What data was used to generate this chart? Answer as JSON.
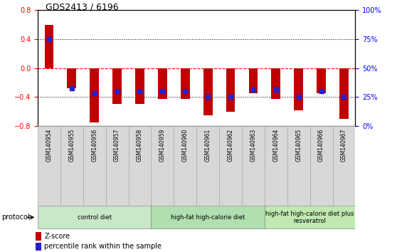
{
  "title": "GDS2413 / 6196",
  "samples": [
    "GSM140954",
    "GSM140955",
    "GSM140956",
    "GSM140957",
    "GSM140958",
    "GSM140959",
    "GSM140960",
    "GSM140961",
    "GSM140962",
    "GSM140963",
    "GSM140964",
    "GSM140965",
    "GSM140966",
    "GSM140967"
  ],
  "zscore": [
    0.6,
    -0.28,
    -0.75,
    -0.5,
    -0.5,
    -0.43,
    -0.43,
    -0.65,
    -0.6,
    -0.35,
    -0.43,
    -0.58,
    -0.35,
    -0.7
  ],
  "percentile_zscore": [
    0.4,
    -0.28,
    -0.35,
    -0.32,
    -0.32,
    -0.32,
    -0.32,
    -0.4,
    -0.4,
    -0.3,
    -0.3,
    -0.4,
    -0.32,
    -0.4
  ],
  "bar_color": "#c00000",
  "dot_color": "#2222cc",
  "ylim": [
    -0.8,
    0.8
  ],
  "yticks_left": [
    -0.8,
    -0.4,
    0.0,
    0.4,
    0.8
  ],
  "yticks_right_labels": [
    "0%",
    "25%",
    "50%",
    "75%",
    "100%"
  ],
  "hline_dotted": [
    0.4,
    -0.4
  ],
  "hline_red": 0.0,
  "groups": [
    {
      "label": "control diet",
      "start": 0,
      "end": 4,
      "color": "#c8e8c8"
    },
    {
      "label": "high-fat high-calorie diet",
      "start": 5,
      "end": 9,
      "color": "#b0e0b0"
    },
    {
      "label": "high-fat high-calorie diet plus\nresveratrol",
      "start": 10,
      "end": 13,
      "color": "#c0e8b0"
    }
  ],
  "protocol_label": "protocol",
  "legend_zscore": "Z-score",
  "legend_percentile": "percentile rank within the sample",
  "bar_width": 0.4,
  "dot_size": 18,
  "dot_marker": "s",
  "sample_box_color": "#d8d8d8",
  "bg_color": "#ffffff"
}
